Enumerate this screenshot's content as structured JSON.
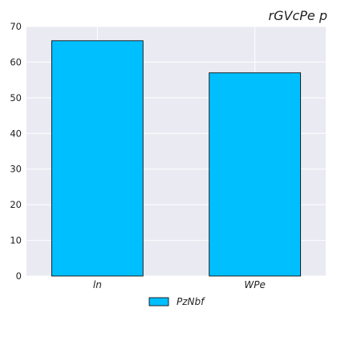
{
  "chart_data": {
    "type": "bar",
    "title": "rGVcPe p",
    "xlabel": "",
    "ylabel": "",
    "categories": [
      "ln",
      "WPe"
    ],
    "series": [
      {
        "name": "PzNbf",
        "values": [
          66,
          57
        ]
      }
    ],
    "ylim": [
      0,
      70
    ],
    "yticks": [
      "0",
      "10",
      "20",
      "30",
      "40",
      "50",
      "60",
      "70"
    ],
    "grid": true,
    "legend_position": "bottom-center",
    "colors": {
      "bar_fill": "#00bfff",
      "bar_edge": "#111111",
      "plot_background": "#eaeaf2",
      "grid": "#ffffff"
    }
  }
}
